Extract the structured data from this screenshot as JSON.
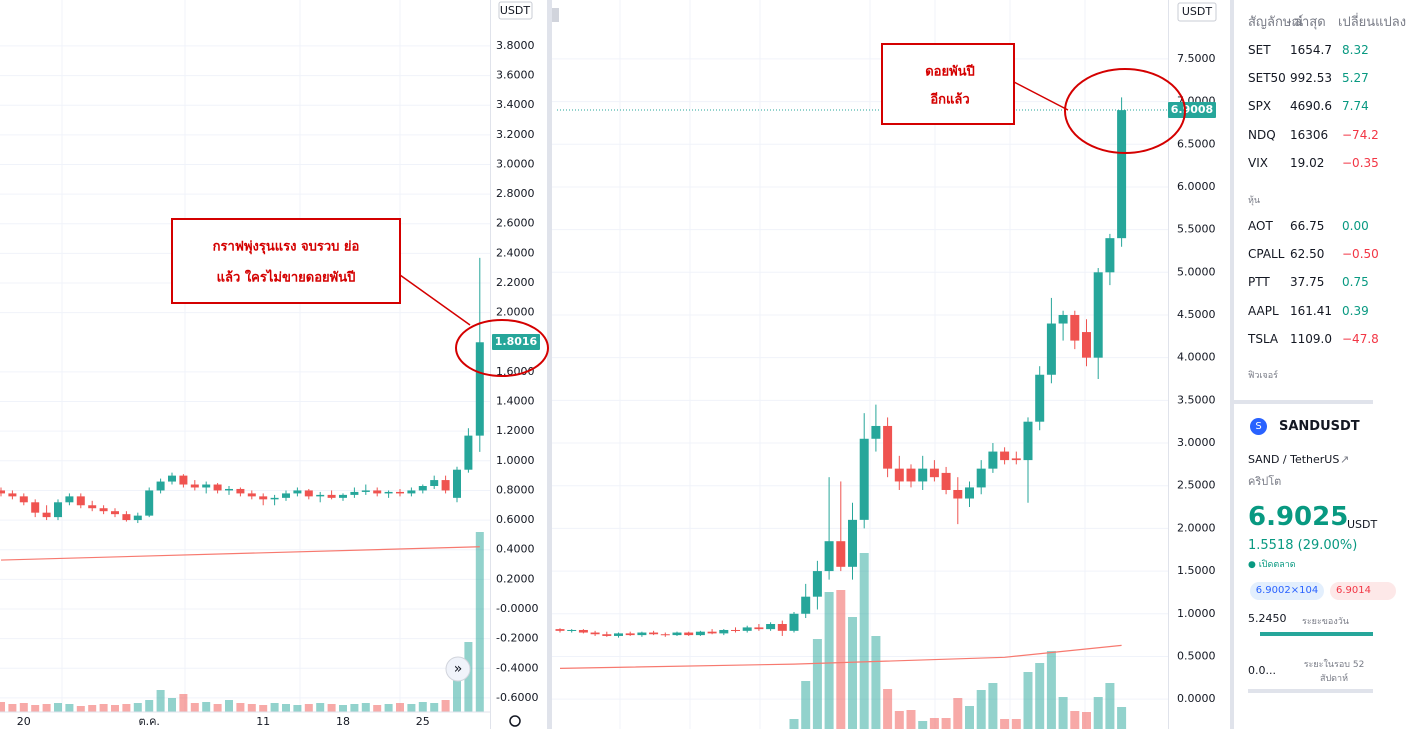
{
  "left_chart": {
    "currency": "USDT",
    "ylim": [
      -0.81,
      4.11
    ],
    "yticks": [
      {
        "value": 3.8,
        "label": "3.8000"
      },
      {
        "value": 3.6,
        "label": "3.6000"
      },
      {
        "value": 3.4,
        "label": "3.4000"
      },
      {
        "value": 3.2,
        "label": "3.2000"
      },
      {
        "value": 3.0,
        "label": "3.0000"
      },
      {
        "value": 2.8,
        "label": "2.8000"
      },
      {
        "value": 2.6,
        "label": "2.6000"
      },
      {
        "value": 2.4,
        "label": "2.4000"
      },
      {
        "value": 2.2,
        "label": "2.2000"
      },
      {
        "value": 2.0,
        "label": "2.0000"
      },
      {
        "value": 1.6,
        "label": "1.6000"
      },
      {
        "value": 1.4,
        "label": "1.4000"
      },
      {
        "value": 1.2,
        "label": "1.2000"
      },
      {
        "value": 1.0,
        "label": "1.0000"
      },
      {
        "value": 0.8,
        "label": "0.8000"
      },
      {
        "value": 0.6,
        "label": "0.6000"
      },
      {
        "value": 0.4,
        "label": "0.4000"
      },
      {
        "value": 0.2,
        "label": "0.2000"
      },
      {
        "value": 0,
        "label": "-0.0000"
      },
      {
        "value": -0.2,
        "label": "-0.2000"
      },
      {
        "value": -0.4,
        "label": "-0.4000"
      },
      {
        "value": -0.6,
        "label": "-0.6000"
      }
    ],
    "candles": [
      [
        0.8,
        0.82,
        0.76,
        0.78
      ],
      [
        0.78,
        0.8,
        0.74,
        0.76
      ],
      [
        0.76,
        0.78,
        0.7,
        0.72
      ],
      [
        0.72,
        0.74,
        0.62,
        0.65
      ],
      [
        0.65,
        0.7,
        0.6,
        0.62
      ],
      [
        0.62,
        0.74,
        0.6,
        0.72
      ],
      [
        0.72,
        0.78,
        0.7,
        0.76
      ],
      [
        0.76,
        0.78,
        0.68,
        0.7
      ],
      [
        0.7,
        0.73,
        0.66,
        0.68
      ],
      [
        0.68,
        0.7,
        0.64,
        0.66
      ],
      [
        0.66,
        0.68,
        0.62,
        0.64
      ],
      [
        0.64,
        0.66,
        0.59,
        0.6
      ],
      [
        0.6,
        0.65,
        0.58,
        0.63
      ],
      [
        0.63,
        0.82,
        0.62,
        0.8
      ],
      [
        0.8,
        0.88,
        0.78,
        0.86
      ],
      [
        0.86,
        0.92,
        0.84,
        0.9
      ],
      [
        0.9,
        0.91,
        0.82,
        0.84
      ],
      [
        0.84,
        0.87,
        0.8,
        0.82
      ],
      [
        0.82,
        0.86,
        0.78,
        0.84
      ],
      [
        0.84,
        0.85,
        0.78,
        0.8
      ],
      [
        0.8,
        0.83,
        0.77,
        0.81
      ],
      [
        0.81,
        0.82,
        0.76,
        0.78
      ],
      [
        0.78,
        0.8,
        0.74,
        0.76
      ],
      [
        0.76,
        0.78,
        0.7,
        0.74
      ],
      [
        0.74,
        0.77,
        0.7,
        0.75
      ],
      [
        0.75,
        0.8,
        0.73,
        0.78
      ],
      [
        0.78,
        0.82,
        0.76,
        0.8
      ],
      [
        0.8,
        0.81,
        0.74,
        0.76
      ],
      [
        0.76,
        0.79,
        0.72,
        0.77
      ],
      [
        0.77,
        0.8,
        0.74,
        0.75
      ],
      [
        0.75,
        0.78,
        0.73,
        0.77
      ],
      [
        0.77,
        0.82,
        0.75,
        0.79
      ],
      [
        0.79,
        0.84,
        0.77,
        0.8
      ],
      [
        0.8,
        0.82,
        0.76,
        0.78
      ],
      [
        0.78,
        0.8,
        0.75,
        0.79
      ],
      [
        0.79,
        0.81,
        0.76,
        0.78
      ],
      [
        0.78,
        0.82,
        0.76,
        0.8
      ],
      [
        0.8,
        0.84,
        0.78,
        0.83
      ],
      [
        0.83,
        0.9,
        0.81,
        0.87
      ],
      [
        0.87,
        0.9,
        0.78,
        0.8
      ],
      [
        0.75,
        0.96,
        0.72,
        0.94
      ],
      [
        0.94,
        1.22,
        0.92,
        1.17
      ],
      [
        1.17,
        2.37,
        1.06,
        1.8
      ]
    ],
    "volumes": [
      10,
      8,
      9,
      7,
      8,
      9,
      8,
      6,
      7,
      8,
      7,
      8,
      9,
      12,
      22,
      14,
      18,
      9,
      10,
      8,
      12,
      9,
      8,
      7,
      9,
      8,
      7,
      8,
      9,
      8,
      7,
      8,
      9,
      7,
      8,
      9,
      8,
      10,
      9,
      12,
      40,
      70,
      180
    ],
    "ma": {
      "index": [
        0,
        42
      ],
      "values": [
        0.33,
        0.42
      ]
    },
    "date_labels": [
      "20",
      "ต.ค.",
      "11",
      "18",
      "25"
    ],
    "date_label_index": [
      2,
      13,
      23,
      30,
      37
    ],
    "last_price": 1.8016,
    "annotation": [
      "กราฟพุ่งรุนแรง จบรวบ ย่อ",
      "แล้ว ใครไม่ขายดอยพันปี"
    ]
  },
  "right_chart": {
    "currency": "USDT",
    "ylim": [
      -0.35,
      8.19
    ],
    "yticks": [
      {
        "value": 7.5,
        "label": "7.5000"
      },
      {
        "value": 7.0,
        "label": "7.0000"
      },
      {
        "value": 6.5,
        "label": "6.5000"
      },
      {
        "value": 6.0,
        "label": "6.0000"
      },
      {
        "value": 5.5,
        "label": "5.5000"
      },
      {
        "value": 5.0,
        "label": "5.0000"
      },
      {
        "value": 4.5,
        "label": "4.5000"
      },
      {
        "value": 4.0,
        "label": "4.0000"
      },
      {
        "value": 3.5,
        "label": "3.5000"
      },
      {
        "value": 3.0,
        "label": "3.0000"
      },
      {
        "value": 2.5,
        "label": "2.5000"
      },
      {
        "value": 2.0,
        "label": "2.0000"
      },
      {
        "value": 1.5,
        "label": "1.5000"
      },
      {
        "value": 1.0,
        "label": "1.0000"
      },
      {
        "value": 0.5,
        "label": "0.5000"
      },
      {
        "value": 0,
        "label": "0.0000"
      }
    ],
    "candles": [
      [
        0.82,
        0.83,
        0.78,
        0.8
      ],
      [
        0.8,
        0.82,
        0.78,
        0.81
      ],
      [
        0.81,
        0.82,
        0.77,
        0.78
      ],
      [
        0.78,
        0.8,
        0.74,
        0.76
      ],
      [
        0.76,
        0.79,
        0.73,
        0.74
      ],
      [
        0.74,
        0.78,
        0.72,
        0.77
      ],
      [
        0.77,
        0.79,
        0.74,
        0.75
      ],
      [
        0.75,
        0.79,
        0.73,
        0.78
      ],
      [
        0.78,
        0.8,
        0.75,
        0.76
      ],
      [
        0.76,
        0.78,
        0.73,
        0.75
      ],
      [
        0.75,
        0.79,
        0.74,
        0.78
      ],
      [
        0.78,
        0.79,
        0.74,
        0.75
      ],
      [
        0.75,
        0.8,
        0.74,
        0.79
      ],
      [
        0.79,
        0.82,
        0.76,
        0.77
      ],
      [
        0.77,
        0.82,
        0.75,
        0.81
      ],
      [
        0.81,
        0.84,
        0.78,
        0.8
      ],
      [
        0.8,
        0.86,
        0.78,
        0.84
      ],
      [
        0.84,
        0.88,
        0.8,
        0.82
      ],
      [
        0.82,
        0.9,
        0.8,
        0.88
      ],
      [
        0.88,
        0.92,
        0.74,
        0.8
      ],
      [
        0.8,
        1.02,
        0.78,
        1.0
      ],
      [
        1.0,
        1.35,
        0.95,
        1.2
      ],
      [
        1.2,
        1.62,
        1.05,
        1.5
      ],
      [
        1.5,
        2.6,
        1.4,
        1.85
      ],
      [
        1.85,
        2.55,
        1.5,
        1.55
      ],
      [
        1.55,
        2.3,
        1.4,
        2.1
      ],
      [
        2.1,
        3.35,
        2.0,
        3.05
      ],
      [
        3.05,
        3.45,
        2.9,
        3.2
      ],
      [
        3.2,
        3.3,
        2.6,
        2.7
      ],
      [
        2.7,
        2.85,
        2.45,
        2.55
      ],
      [
        2.7,
        2.75,
        2.48,
        2.55
      ],
      [
        2.55,
        2.85,
        2.45,
        2.7
      ],
      [
        2.7,
        2.8,
        2.55,
        2.6
      ],
      [
        2.65,
        2.72,
        2.4,
        2.45
      ],
      [
        2.45,
        2.6,
        2.05,
        2.35
      ],
      [
        2.35,
        2.55,
        2.25,
        2.48
      ],
      [
        2.48,
        2.8,
        2.4,
        2.7
      ],
      [
        2.7,
        3.0,
        2.65,
        2.9
      ],
      [
        2.9,
        2.95,
        2.75,
        2.8
      ],
      [
        2.82,
        2.9,
        2.75,
        2.8
      ],
      [
        2.8,
        3.3,
        2.3,
        3.25
      ],
      [
        3.25,
        3.9,
        3.15,
        3.8
      ],
      [
        3.8,
        4.7,
        3.7,
        4.4
      ],
      [
        4.4,
        4.55,
        4.2,
        4.5
      ],
      [
        4.5,
        4.55,
        4.1,
        4.2
      ],
      [
        4.3,
        4.45,
        3.9,
        4.0
      ],
      [
        4.0,
        5.05,
        3.75,
        5.0
      ],
      [
        5.0,
        5.45,
        4.85,
        5.4
      ],
      [
        5.4,
        7.05,
        5.3,
        6.9
      ]
    ],
    "volumes": [
      0,
      0,
      0,
      0,
      0,
      0,
      0,
      0,
      0,
      0,
      0,
      0,
      0,
      0,
      0,
      0,
      0,
      0,
      0,
      0,
      10,
      48,
      90,
      137,
      139,
      112,
      176,
      93,
      40,
      18,
      19,
      8,
      11,
      11,
      31,
      23,
      39,
      46,
      10,
      10,
      57,
      66,
      78,
      32,
      18,
      17,
      32,
      46,
      22
    ],
    "ma": {
      "index": [
        0,
        20,
        38,
        48
      ],
      "values": [
        0.36,
        0.41,
        0.49,
        0.63
      ]
    },
    "last_price": 6.9008,
    "annotation": [
      "ดอยพันปี",
      "อีกแล้ว"
    ]
  },
  "watchlist": {
    "headers": [
      "สัญลักษณ์",
      "ล่าสุด",
      "เปลี่ยนแปลง"
    ],
    "indices": [
      [
        "SET",
        "1654.7",
        "8.32"
      ],
      [
        "SET50",
        "992.53",
        "5.27"
      ],
      [
        "SPX",
        "4690.6",
        "7.74"
      ],
      [
        "NDQ",
        "16306",
        "−74.2"
      ],
      [
        "VIX",
        "19.02",
        "−0.35"
      ]
    ],
    "stocks_title": "หุ้น",
    "stocks": [
      [
        "AOT",
        "66.75",
        "0.00"
      ],
      [
        "CPALL",
        "62.50",
        "−0.50"
      ],
      [
        "PTT",
        "37.75",
        "0.75"
      ],
      [
        "AAPL",
        "161.41",
        "0.39"
      ],
      [
        "TSLA",
        "1109.0",
        "−47.8"
      ]
    ],
    "futures_title": "ฟิวเจอร์"
  },
  "symbol_panel": {
    "symbol": "SANDUSDT",
    "description": "SAND / TetherUS",
    "category": "คริปโต",
    "price": "6.9025",
    "currency": "USDT",
    "change": "1.5518 (29.00%)",
    "status": "เปิดตลาด",
    "bid": "6.9002×104",
    "ask": "6.9014",
    "day_low": "5.2450",
    "day_range_label": "ระยะของวัน",
    "week52_low": "0.0...",
    "week52_label": "ระยะในรอบ 52 สัปดาห์"
  }
}
